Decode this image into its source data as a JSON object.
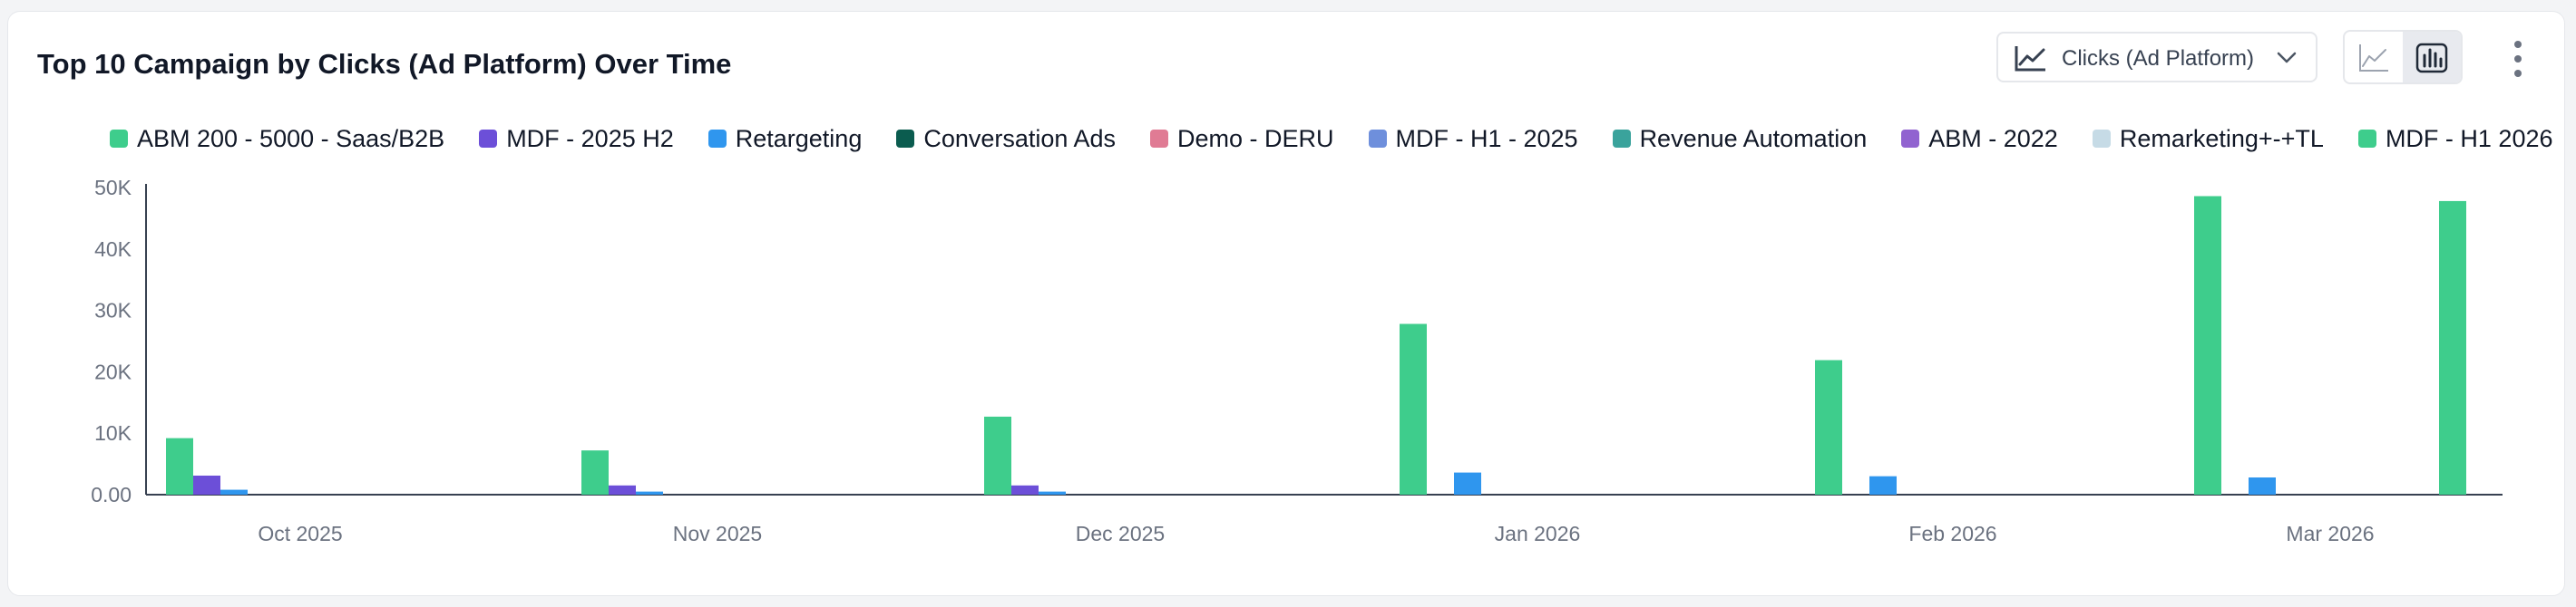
{
  "title": "Top 10 Campaign by Clicks (Ad Platform) Over Time",
  "metric_dropdown": {
    "label": "Clicks (Ad Platform)",
    "icon": "trend-line-icon"
  },
  "view_toggle": {
    "options": [
      "line-chart-icon",
      "bar-chart-icon"
    ],
    "selected": "bar-chart-icon"
  },
  "more_menu": {
    "icon": "kebab-icon"
  },
  "chart_data": {
    "type": "bar",
    "title": "Top 10 Campaign by Clicks (Ad Platform) Over Time",
    "xlabel": "",
    "ylabel": "",
    "categories": [
      "Oct 2025",
      "Nov 2025",
      "Dec 2025",
      "Jan 2026",
      "Feb 2026",
      "Mar 2026"
    ],
    "ylim": [
      0,
      50000
    ],
    "y_ticks": [
      "0.00",
      "10K",
      "20K",
      "30K",
      "40K",
      "50K"
    ],
    "grid": false,
    "legend_position": "top",
    "series": [
      {
        "name": "ABM 200 - 5000 - Saas/B2B",
        "color": "#3ecd8c",
        "values": [
          9200,
          7200,
          12700,
          0,
          0,
          0
        ]
      },
      {
        "name": "MDF - 2025 H2",
        "color": "#6c4fd8",
        "values": [
          3100,
          1500,
          1500,
          0,
          0,
          0
        ]
      },
      {
        "name": "Retargeting",
        "color": "#2f96ee",
        "values": [
          800,
          500,
          500,
          3600,
          3000,
          2800
        ]
      },
      {
        "name": "Conversation Ads",
        "color": "#0b5c4f",
        "values": [
          0,
          0,
          0,
          0,
          0,
          0
        ]
      },
      {
        "name": "Demo - DERU",
        "color": "#e07b94",
        "values": [
          0,
          0,
          0,
          0,
          0,
          0
        ]
      },
      {
        "name": "MDF - H1 - 2025",
        "color": "#6e8fdc",
        "values": [
          0,
          0,
          0,
          0,
          0,
          0
        ]
      },
      {
        "name": "Revenue Automation",
        "color": "#3aa39c",
        "values": [
          0,
          0,
          0,
          0,
          0,
          0
        ]
      },
      {
        "name": "ABM - 2022",
        "color": "#9163d0",
        "values": [
          0,
          0,
          0,
          0,
          0,
          0
        ]
      },
      {
        "name": "Remarketing+-+TL",
        "color": "#c6dbe6",
        "values": [
          0,
          0,
          0,
          0,
          0,
          0
        ]
      },
      {
        "name": "MDF - H1 2026",
        "color": "#3ecd8c",
        "values": [
          0,
          0,
          0,
          27800,
          21900,
          48600
        ]
      }
    ],
    "extra_bars": [
      {
        "series": "MDF - H1 2026",
        "value": 47800
      }
    ]
  }
}
